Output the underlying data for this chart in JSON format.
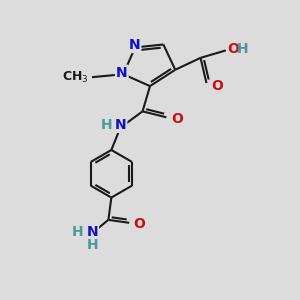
{
  "background_color": "#dcdcdc",
  "bond_color": "#1a1a1a",
  "bond_width": 1.5,
  "atom_colors": {
    "N": "#1010cc",
    "O": "#cc1010",
    "C": "#1a1a1a",
    "H_teal": "#4a9a9a"
  },
  "fig_size": [
    3.0,
    3.0
  ],
  "dpi": 100,
  "xlim": [
    0,
    10
  ],
  "ylim": [
    0,
    10
  ]
}
